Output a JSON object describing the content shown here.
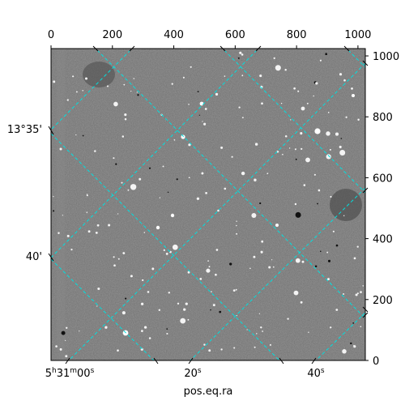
{
  "axes": {
    "top_ticks": [
      "0",
      "200",
      "400",
      "600",
      "800",
      "1000"
    ],
    "right_ticks": [
      "0",
      "200",
      "400",
      "600",
      "800",
      "1000"
    ],
    "left_dec_labels": [
      "13°35'",
      "40'"
    ],
    "bottom_ra_labels": [
      "5h31m00s",
      "20s",
      "40s"
    ],
    "bottom_title": "pos.eq.ra"
  },
  "colors": {
    "grid": "#00e0e0",
    "sky_bg": "#6f6f6f"
  }
}
